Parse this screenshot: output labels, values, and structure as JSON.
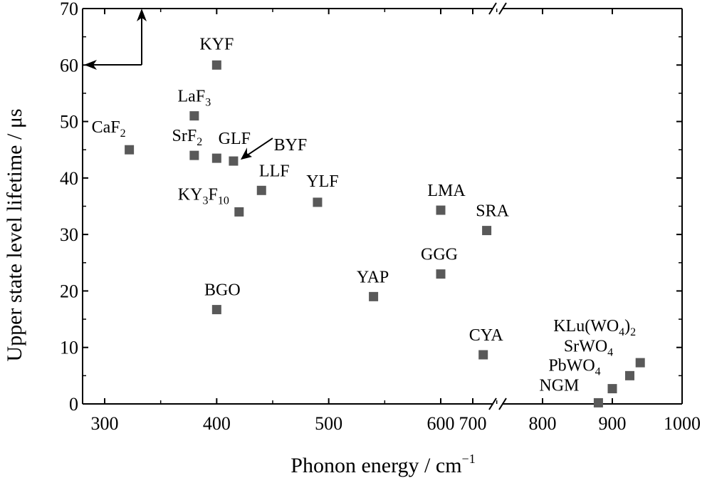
{
  "chart_data": {
    "type": "scatter",
    "xlabel": "Phonon energy / cm",
    "xlabel_sup": "−1",
    "ylabel": "Upper state level lifetime / μs",
    "ylim": [
      0,
      70
    ],
    "yticks": [
      "0",
      "10",
      "20",
      "30",
      "40",
      "50",
      "60",
      "70"
    ],
    "x_axis_broken": true,
    "x_segments": [
      {
        "range": [
          280,
          655
        ],
        "ticks": [
          300,
          400,
          500,
          600
        ]
      },
      {
        "range": [
          665,
          1000
        ],
        "ticks": [
          700,
          800,
          900,
          1000
        ]
      }
    ],
    "xtick_labels": [
      "300",
      "400",
      "500",
      "600",
      "700",
      "800",
      "900",
      "1000"
    ],
    "marker_color": "#595959",
    "points": [
      {
        "name": "CaF2",
        "parts": [
          [
            "CaF",
            ""
          ],
          [
            "2",
            "sub"
          ]
        ],
        "x": 322,
        "y": 45
      },
      {
        "name": "KYF",
        "parts": [
          [
            "KYF",
            ""
          ]
        ],
        "x": 400,
        "y": 60
      },
      {
        "name": "LaF3",
        "parts": [
          [
            "LaF",
            ""
          ],
          [
            "3",
            "sub"
          ]
        ],
        "x": 380,
        "y": 51
      },
      {
        "name": "SrF2",
        "parts": [
          [
            "SrF",
            ""
          ],
          [
            "2",
            "sub"
          ]
        ],
        "x": 380,
        "y": 44
      },
      {
        "name": "GLF",
        "parts": [
          [
            "GLF",
            ""
          ]
        ],
        "x": 400,
        "y": 43.5
      },
      {
        "name": "BYF",
        "parts": [
          [
            "BYF",
            ""
          ]
        ],
        "x": 415,
        "y": 43
      },
      {
        "name": "LLF",
        "parts": [
          [
            "LLF",
            ""
          ]
        ],
        "x": 440,
        "y": 37.8
      },
      {
        "name": "KY3F10",
        "parts": [
          [
            "KY",
            ""
          ],
          [
            "3",
            "sub"
          ],
          [
            "F",
            ""
          ],
          [
            "10",
            "sub"
          ]
        ],
        "x": 420,
        "y": 34
      },
      {
        "name": "YLF",
        "parts": [
          [
            "YLF",
            ""
          ]
        ],
        "x": 490,
        "y": 35.7
      },
      {
        "name": "LMA",
        "parts": [
          [
            "LMA",
            ""
          ]
        ],
        "x": 600,
        "y": 34.3
      },
      {
        "name": "SRA",
        "parts": [
          [
            "SRA",
            ""
          ]
        ],
        "x": 720,
        "y": 30.7
      },
      {
        "name": "GGG",
        "parts": [
          [
            "GGG",
            ""
          ]
        ],
        "x": 600,
        "y": 23
      },
      {
        "name": "YAP",
        "parts": [
          [
            "YAP",
            ""
          ]
        ],
        "x": 540,
        "y": 19
      },
      {
        "name": "BGO",
        "parts": [
          [
            "BGO",
            ""
          ]
        ],
        "x": 400,
        "y": 16.7
      },
      {
        "name": "CYA",
        "parts": [
          [
            "CYA",
            ""
          ]
        ],
        "x": 715,
        "y": 8.7
      },
      {
        "name": "KLu(WO4)2",
        "parts": [
          [
            "KLu(WO",
            ""
          ],
          [
            "4",
            "sub"
          ],
          [
            ")",
            ""
          ],
          [
            "2",
            "sub"
          ]
        ],
        "x": 940,
        "y": 7.3
      },
      {
        "name": "SrWO4",
        "parts": [
          [
            "SrWO",
            ""
          ],
          [
            "4",
            "sub"
          ]
        ],
        "x": 925,
        "y": 5
      },
      {
        "name": "PbWO4",
        "parts": [
          [
            "PbWO",
            ""
          ],
          [
            "4",
            "sub"
          ]
        ],
        "x": 900,
        "y": 2.7
      },
      {
        "name": "NGM",
        "parts": [
          [
            "NGM",
            ""
          ]
        ],
        "x": 880,
        "y": 0.2
      }
    ]
  }
}
